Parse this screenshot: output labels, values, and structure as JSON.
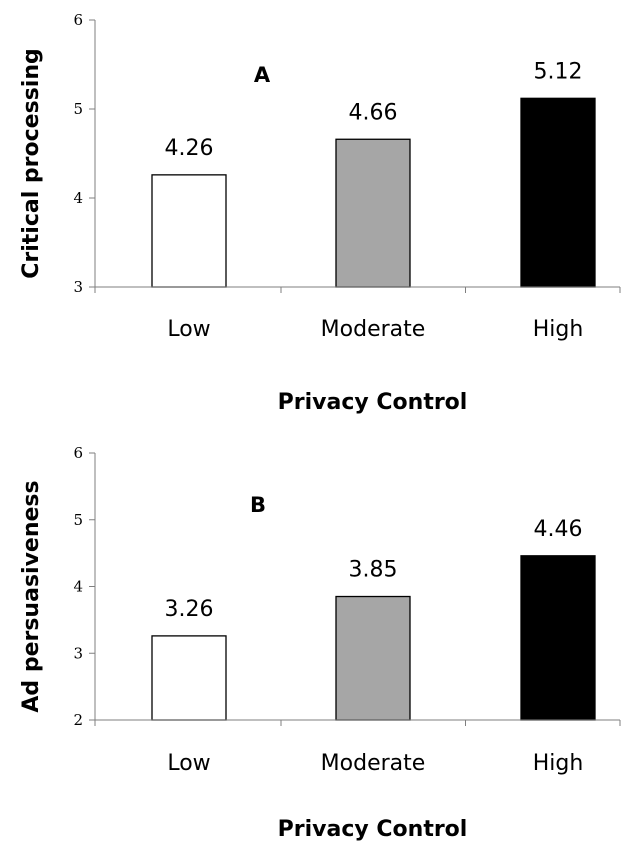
{
  "chart_data": [
    {
      "type": "bar",
      "panel_label": "A",
      "categories": [
        "Low",
        "Moderate",
        "High"
      ],
      "values": [
        4.26,
        4.66,
        5.12
      ],
      "data_labels": [
        "4.26",
        "4.66",
        "5.12"
      ],
      "bar_colors": [
        "#ffffff",
        "#a6a6a6",
        "#000000"
      ],
      "bar_stroke": "#000000",
      "xlabel": "Privacy Control",
      "ylabel": "Critical processing",
      "ylim": [
        3,
        6
      ],
      "yticks": [
        3,
        4,
        5,
        6
      ],
      "grid": false
    },
    {
      "type": "bar",
      "panel_label": "B",
      "categories": [
        "Low",
        "Moderate",
        "High"
      ],
      "values": [
        3.26,
        3.85,
        4.46
      ],
      "data_labels": [
        "3.26",
        "3.85",
        "4.46"
      ],
      "bar_colors": [
        "#ffffff",
        "#a6a6a6",
        "#000000"
      ],
      "bar_stroke": "#000000",
      "xlabel": "Privacy Control",
      "ylabel": "Ad persuasiveness",
      "ylim": [
        2,
        6
      ],
      "yticks": [
        2,
        3,
        4,
        5,
        6
      ],
      "grid": false
    }
  ]
}
